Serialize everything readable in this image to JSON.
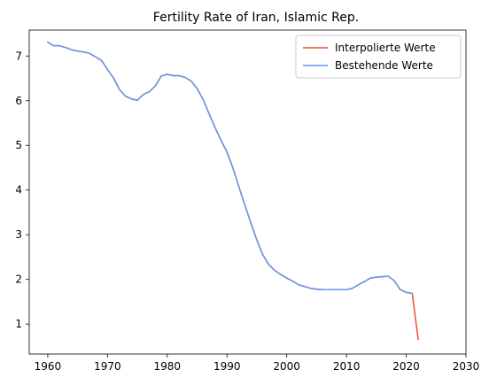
{
  "chart_data": {
    "type": "line",
    "title": "Fertility Rate of Iran, Islamic Rep.",
    "xlabel": "",
    "ylabel": "",
    "xlim": [
      1956.9,
      2030
    ],
    "ylim": [
      0.33,
      7.58
    ],
    "xticks": [
      1960,
      1970,
      1980,
      1990,
      2000,
      2010,
      2020,
      2030
    ],
    "yticks": [
      1,
      2,
      3,
      4,
      5,
      6,
      7
    ],
    "grid": false,
    "legend_position": "top-right",
    "series": [
      {
        "name": "Interpolierte Werte",
        "color": "#e8542a",
        "x": [
          1960,
          1961,
          1962,
          1963,
          1964,
          1965,
          1966,
          1967,
          1968,
          1969,
          1970,
          1971,
          1972,
          1973,
          1974,
          1975,
          1976,
          1977,
          1978,
          1979,
          1980,
          1981,
          1982,
          1983,
          1984,
          1985,
          1986,
          1987,
          1988,
          1989,
          1990,
          1991,
          1992,
          1993,
          1994,
          1995,
          1996,
          1997,
          1998,
          1999,
          2000,
          2001,
          2002,
          2003,
          2004,
          2005,
          2006,
          2007,
          2008,
          2009,
          2010,
          2011,
          2012,
          2013,
          2014,
          2015,
          2016,
          2017,
          2018,
          2019,
          2020,
          2021,
          2022
        ],
        "y": [
          7.31,
          7.23,
          7.23,
          7.19,
          7.14,
          7.11,
          7.09,
          7.06,
          6.98,
          6.9,
          6.7,
          6.51,
          6.25,
          6.1,
          6.04,
          6.01,
          6.14,
          6.2,
          6.33,
          6.55,
          6.59,
          6.56,
          6.56,
          6.52,
          6.44,
          6.27,
          6.03,
          5.71,
          5.4,
          5.11,
          4.85,
          4.49,
          4.07,
          3.66,
          3.26,
          2.88,
          2.55,
          2.33,
          2.2,
          2.11,
          2.03,
          1.96,
          1.88,
          1.84,
          1.8,
          1.78,
          1.77,
          1.77,
          1.77,
          1.77,
          1.77,
          1.8,
          1.88,
          1.95,
          2.03,
          2.05,
          2.06,
          2.07,
          1.97,
          1.77,
          1.71,
          1.69,
          0.66
        ]
      },
      {
        "name": "Bestehende Werte",
        "color": "#6495ed",
        "x": [
          1960,
          1961,
          1962,
          1963,
          1964,
          1965,
          1966,
          1967,
          1968,
          1969,
          1970,
          1971,
          1972,
          1973,
          1974,
          1975,
          1976,
          1977,
          1978,
          1979,
          1980,
          1981,
          1982,
          1983,
          1984,
          1985,
          1986,
          1987,
          1988,
          1989,
          1990,
          1991,
          1992,
          1993,
          1994,
          1995,
          1996,
          1997,
          1998,
          1999,
          2000,
          2001,
          2002,
          2003,
          2004,
          2005,
          2006,
          2007,
          2008,
          2009,
          2010,
          2011,
          2012,
          2013,
          2014,
          2015,
          2016,
          2017,
          2018,
          2019,
          2020,
          2021
        ],
        "y": [
          7.31,
          7.23,
          7.23,
          7.19,
          7.14,
          7.11,
          7.09,
          7.06,
          6.98,
          6.9,
          6.7,
          6.51,
          6.25,
          6.1,
          6.04,
          6.01,
          6.14,
          6.2,
          6.33,
          6.55,
          6.59,
          6.56,
          6.56,
          6.52,
          6.44,
          6.27,
          6.03,
          5.71,
          5.4,
          5.11,
          4.85,
          4.49,
          4.07,
          3.66,
          3.26,
          2.88,
          2.55,
          2.33,
          2.2,
          2.11,
          2.03,
          1.96,
          1.88,
          1.84,
          1.8,
          1.78,
          1.77,
          1.77,
          1.77,
          1.77,
          1.77,
          1.8,
          1.88,
          1.95,
          2.03,
          2.05,
          2.06,
          2.07,
          1.97,
          1.77,
          1.71,
          1.69
        ]
      }
    ]
  }
}
